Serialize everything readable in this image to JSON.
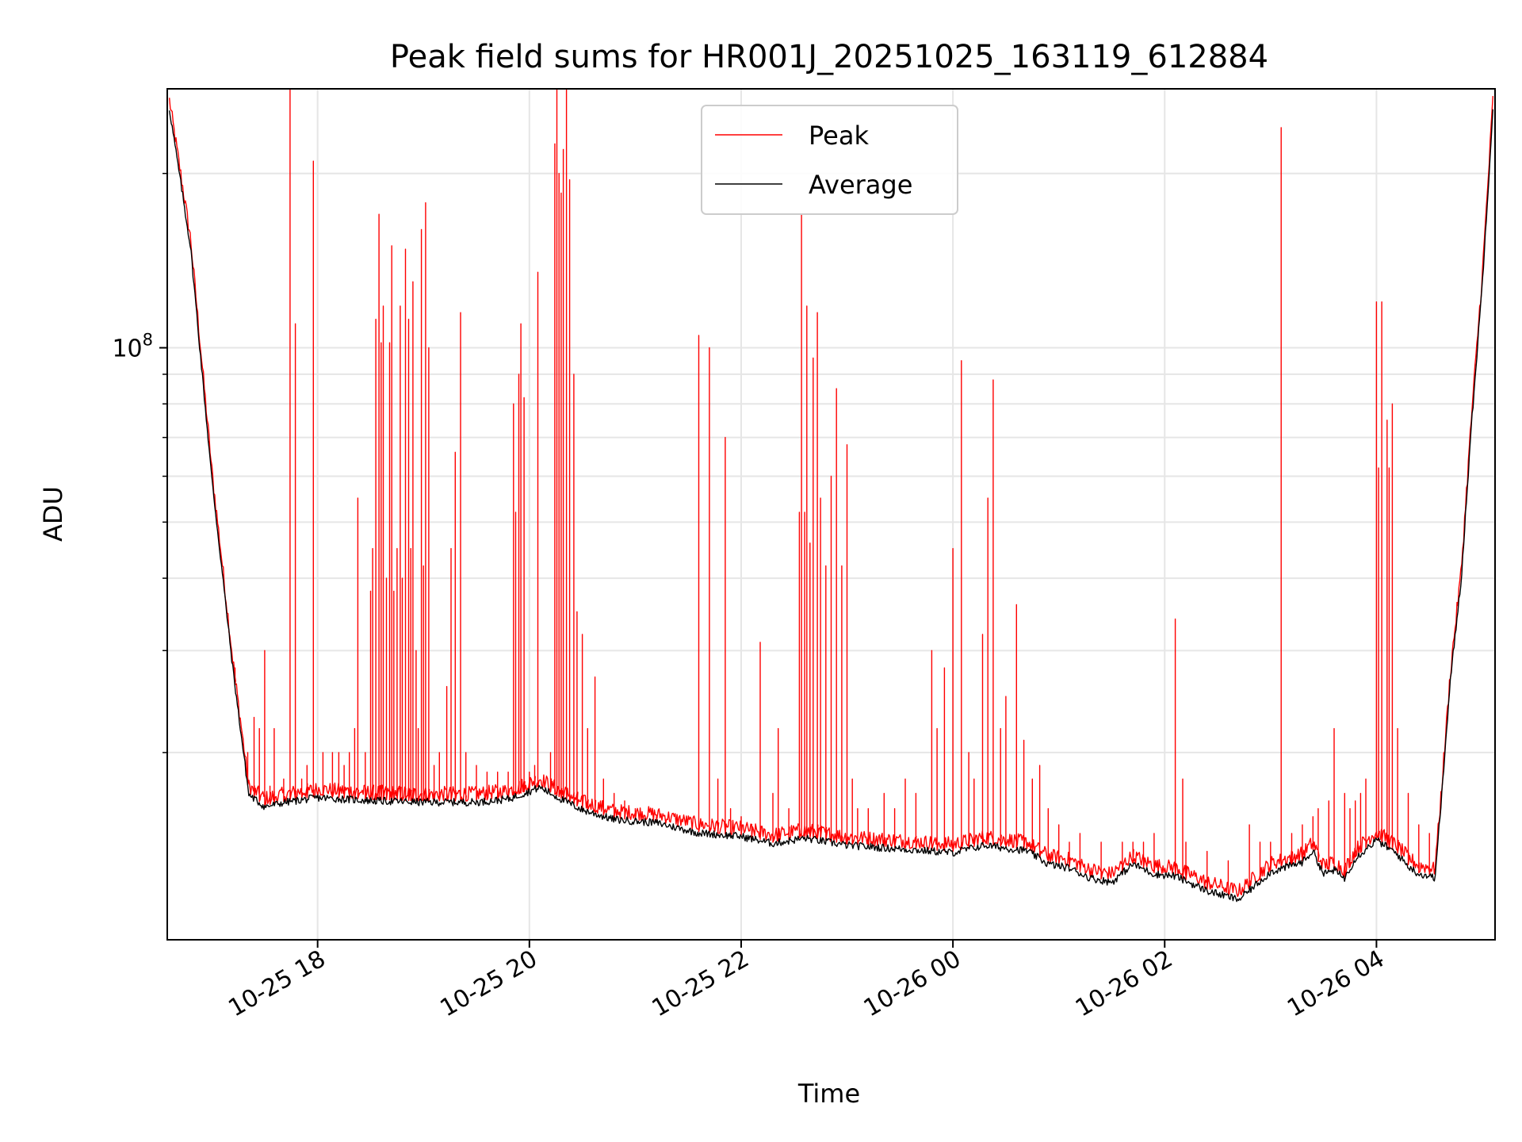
{
  "chart_data": {
    "type": "line",
    "title": "Peak field sums for HR001J_20251025_163119_612884",
    "xlabel": "Time",
    "ylabel": "ADU",
    "y_scale": "log",
    "ylim": [
      9500000,
      280000000
    ],
    "grid": true,
    "legend_position": "top-center",
    "x_axis": {
      "unit": "hours since 2025-10-25 00:00",
      "range": [
        16.58,
        29.12
      ],
      "ticks": [
        {
          "value": 18,
          "label": "10-25 18"
        },
        {
          "value": 20,
          "label": "10-25 20"
        },
        {
          "value": 22,
          "label": "10-25 22"
        },
        {
          "value": 24,
          "label": "10-26 00"
        },
        {
          "value": 26,
          "label": "10-26 02"
        },
        {
          "value": 28,
          "label": "10-26 04"
        }
      ]
    },
    "y_axis": {
      "major_ticks": [
        {
          "value": 100000000,
          "label_base": "10",
          "label_exp": "8"
        }
      ],
      "minor_ticks": [
        20000000,
        30000000,
        40000000,
        50000000,
        60000000,
        70000000,
        80000000,
        90000000,
        200000000
      ]
    },
    "series": [
      {
        "name": "Peak",
        "color": "#ff0000",
        "baseline_x": [
          16.6,
          16.8,
          17.0,
          17.2,
          17.35,
          17.5,
          17.7,
          18.0,
          18.5,
          19.0,
          19.5,
          19.8,
          20.1,
          20.3,
          20.5,
          20.8,
          21.2,
          21.6,
          22.0,
          22.3,
          22.6,
          23.0,
          23.5,
          24.0,
          24.3,
          24.7,
          24.9,
          25.1,
          25.3,
          25.5,
          25.7,
          25.9,
          26.1,
          26.4,
          26.7,
          27.0,
          27.3,
          27.4,
          27.5,
          27.6,
          27.7,
          27.8,
          28.0,
          28.2,
          28.3,
          28.4,
          28.5,
          28.55,
          28.6,
          28.7,
          28.8,
          28.9,
          29.0,
          29.1
        ],
        "baseline_y": [
          260000000,
          150000000,
          60000000,
          28000000,
          17000000,
          16200000,
          16500000,
          16800000,
          16600000,
          16500000,
          16500000,
          16700000,
          17500000,
          16700000,
          16000000,
          15400000,
          15200000,
          14600000,
          14400000,
          14000000,
          14300000,
          13900000,
          13700000,
          13500000,
          13900000,
          13600000,
          12900000,
          12700000,
          12200000,
          12000000,
          12900000,
          12400000,
          12300000,
          11600000,
          11200000,
          12500000,
          13000000,
          13600000,
          12400000,
          12600000,
          12200000,
          13200000,
          14200000,
          13400000,
          12800000,
          12400000,
          12300000,
          12200000,
          15500000,
          27000000,
          40000000,
          75000000,
          130000000,
          260000000
        ],
        "spikes": [
          [
            17.22,
            28000000
          ],
          [
            17.34,
            20000000
          ],
          [
            17.4,
            23000000
          ],
          [
            17.45,
            22000000
          ],
          [
            17.5,
            30000000
          ],
          [
            17.55,
            17500000
          ],
          [
            17.59,
            22000000
          ],
          [
            17.68,
            18000000
          ],
          [
            17.74,
            300000000
          ],
          [
            17.79,
            110000000
          ],
          [
            17.85,
            18000000
          ],
          [
            17.9,
            19000000
          ],
          [
            17.96,
            210000000
          ],
          [
            18.05,
            20000000
          ],
          [
            18.14,
            20000000
          ],
          [
            18.2,
            20000000
          ],
          [
            18.25,
            19000000
          ],
          [
            18.3,
            20000000
          ],
          [
            18.35,
            22000000
          ],
          [
            18.38,
            55000000
          ],
          [
            18.45,
            20000000
          ],
          [
            18.5,
            38000000
          ],
          [
            18.52,
            45000000
          ],
          [
            18.55,
            112000000
          ],
          [
            18.58,
            170000000
          ],
          [
            18.6,
            102000000
          ],
          [
            18.62,
            118000000
          ],
          [
            18.65,
            40000000
          ],
          [
            18.68,
            102000000
          ],
          [
            18.7,
            150000000
          ],
          [
            18.72,
            38000000
          ],
          [
            18.75,
            45000000
          ],
          [
            18.78,
            118000000
          ],
          [
            18.8,
            40000000
          ],
          [
            18.83,
            148000000
          ],
          [
            18.86,
            112000000
          ],
          [
            18.88,
            45000000
          ],
          [
            18.9,
            130000000
          ],
          [
            18.93,
            30000000
          ],
          [
            18.95,
            22000000
          ],
          [
            18.98,
            160000000
          ],
          [
            19.0,
            42000000
          ],
          [
            19.02,
            178000000
          ],
          [
            19.05,
            100000000
          ],
          [
            19.1,
            19000000
          ],
          [
            19.15,
            20000000
          ],
          [
            19.22,
            26000000
          ],
          [
            19.26,
            45000000
          ],
          [
            19.3,
            66000000
          ],
          [
            19.35,
            115000000
          ],
          [
            19.4,
            20000000
          ],
          [
            19.5,
            19000000
          ],
          [
            19.6,
            18500000
          ],
          [
            19.7,
            18500000
          ],
          [
            19.8,
            18500000
          ],
          [
            19.85,
            80000000
          ],
          [
            19.87,
            52000000
          ],
          [
            19.9,
            90000000
          ],
          [
            19.92,
            110000000
          ],
          [
            19.95,
            82000000
          ],
          [
            20.0,
            18500000
          ],
          [
            20.05,
            19000000
          ],
          [
            20.08,
            135000000
          ],
          [
            20.2,
            20000000
          ],
          [
            20.24,
            225000000
          ],
          [
            20.26,
            290000000
          ],
          [
            20.28,
            200000000
          ],
          [
            20.3,
            185000000
          ],
          [
            20.32,
            220000000
          ],
          [
            20.35,
            300000000
          ],
          [
            20.38,
            195000000
          ],
          [
            20.42,
            90000000
          ],
          [
            20.45,
            35000000
          ],
          [
            20.5,
            32000000
          ],
          [
            20.55,
            22000000
          ],
          [
            20.62,
            27000000
          ],
          [
            20.7,
            18000000
          ],
          [
            20.8,
            17000000
          ],
          [
            20.9,
            16500000
          ],
          [
            21.0,
            16000000
          ],
          [
            21.2,
            15500000
          ],
          [
            21.4,
            15000000
          ],
          [
            21.6,
            105000000
          ],
          [
            21.7,
            100000000
          ],
          [
            21.78,
            18000000
          ],
          [
            21.85,
            70000000
          ],
          [
            21.9,
            16000000
          ],
          [
            22.0,
            15500000
          ],
          [
            22.1,
            15000000
          ],
          [
            22.18,
            31000000
          ],
          [
            22.3,
            17000000
          ],
          [
            22.35,
            22000000
          ],
          [
            22.45,
            16000000
          ],
          [
            22.55,
            52000000
          ],
          [
            22.57,
            170000000
          ],
          [
            22.6,
            52000000
          ],
          [
            22.62,
            118000000
          ],
          [
            22.65,
            46000000
          ],
          [
            22.68,
            96000000
          ],
          [
            22.72,
            115000000
          ],
          [
            22.75,
            55000000
          ],
          [
            22.8,
            42000000
          ],
          [
            22.85,
            60000000
          ],
          [
            22.9,
            85000000
          ],
          [
            22.95,
            42000000
          ],
          [
            23.0,
            68000000
          ],
          [
            23.05,
            18000000
          ],
          [
            23.1,
            16000000
          ],
          [
            23.2,
            16000000
          ],
          [
            23.35,
            17000000
          ],
          [
            23.45,
            16000000
          ],
          [
            23.55,
            18000000
          ],
          [
            23.65,
            17000000
          ],
          [
            23.8,
            30000000
          ],
          [
            23.85,
            22000000
          ],
          [
            23.92,
            28000000
          ],
          [
            24.0,
            45000000
          ],
          [
            24.08,
            95000000
          ],
          [
            24.15,
            20000000
          ],
          [
            24.2,
            18000000
          ],
          [
            24.28,
            32000000
          ],
          [
            24.33,
            55000000
          ],
          [
            24.38,
            88000000
          ],
          [
            24.45,
            22000000
          ],
          [
            24.5,
            25000000
          ],
          [
            24.6,
            36000000
          ],
          [
            24.67,
            21000000
          ],
          [
            24.75,
            18000000
          ],
          [
            24.82,
            19000000
          ],
          [
            24.9,
            16000000
          ],
          [
            25.0,
            15000000
          ],
          [
            25.1,
            14000000
          ],
          [
            25.2,
            14500000
          ],
          [
            25.4,
            14000000
          ],
          [
            25.6,
            14000000
          ],
          [
            25.7,
            14000000
          ],
          [
            25.8,
            14000000
          ],
          [
            25.9,
            14500000
          ],
          [
            26.1,
            34000000
          ],
          [
            26.17,
            18000000
          ],
          [
            26.2,
            14000000
          ],
          [
            26.4,
            13500000
          ],
          [
            26.6,
            13000000
          ],
          [
            26.8,
            15000000
          ],
          [
            26.9,
            14000000
          ],
          [
            27.0,
            14000000
          ],
          [
            27.1,
            240000000
          ],
          [
            27.2,
            14500000
          ],
          [
            27.3,
            15000000
          ],
          [
            27.4,
            15500000
          ],
          [
            27.45,
            16000000
          ],
          [
            27.55,
            16500000
          ],
          [
            27.6,
            22000000
          ],
          [
            27.7,
            17000000
          ],
          [
            27.75,
            16000000
          ],
          [
            27.8,
            16500000
          ],
          [
            27.85,
            17000000
          ],
          [
            27.9,
            18000000
          ],
          [
            28.0,
            120000000
          ],
          [
            28.02,
            62000000
          ],
          [
            28.05,
            120000000
          ],
          [
            28.1,
            75000000
          ],
          [
            28.12,
            62000000
          ],
          [
            28.15,
            80000000
          ],
          [
            28.2,
            22000000
          ],
          [
            28.3,
            17000000
          ],
          [
            28.4,
            15000000
          ],
          [
            28.5,
            14500000
          ]
        ]
      },
      {
        "name": "Average",
        "color": "#000000",
        "x": [
          16.6,
          16.8,
          17.0,
          17.2,
          17.35,
          17.5,
          17.7,
          18.0,
          18.5,
          19.0,
          19.5,
          19.8,
          20.1,
          20.3,
          20.5,
          20.8,
          21.2,
          21.6,
          22.0,
          22.3,
          22.6,
          23.0,
          23.5,
          24.0,
          24.3,
          24.7,
          24.9,
          25.1,
          25.3,
          25.5,
          25.7,
          25.9,
          26.1,
          26.4,
          26.7,
          27.0,
          27.3,
          27.4,
          27.5,
          27.6,
          27.7,
          27.8,
          28.0,
          28.2,
          28.3,
          28.4,
          28.5,
          28.55,
          28.6,
          28.7,
          28.8,
          28.9,
          29.0,
          29.1
        ],
        "y": [
          260000000,
          150000000,
          60000000,
          28000000,
          17000000,
          16200000,
          16500000,
          16800000,
          16600000,
          16500000,
          16500000,
          16700000,
          17500000,
          16700000,
          16000000,
          15400000,
          15200000,
          14600000,
          14400000,
          14000000,
          14300000,
          13900000,
          13700000,
          13500000,
          13900000,
          13600000,
          12900000,
          12700000,
          12200000,
          12000000,
          12900000,
          12400000,
          12300000,
          11600000,
          11200000,
          12500000,
          13000000,
          13600000,
          12400000,
          12600000,
          12200000,
          13200000,
          14200000,
          13400000,
          12800000,
          12400000,
          12300000,
          12200000,
          15500000,
          27000000,
          40000000,
          75000000,
          130000000,
          260000000
        ]
      }
    ]
  }
}
